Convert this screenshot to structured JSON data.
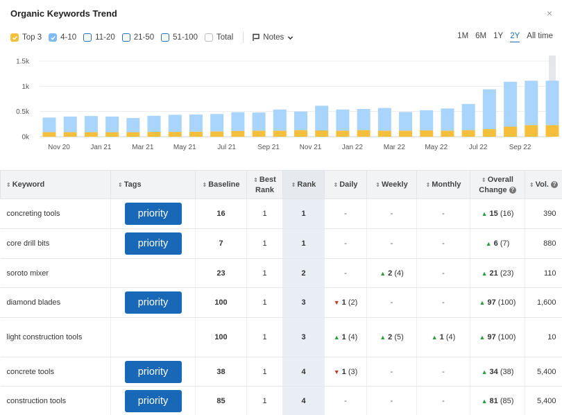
{
  "header": {
    "title": "Organic Keywords Trend",
    "close_glyph": "×"
  },
  "filters": [
    {
      "label": "Top 3",
      "checked": true,
      "color": "#f5bf3b"
    },
    {
      "label": "4-10",
      "checked": true,
      "color": "#7dbbf2"
    },
    {
      "label": "11-20",
      "checked": false,
      "color": "#1f6fc0"
    },
    {
      "label": "21-50",
      "checked": false,
      "color": "#1f6fc0"
    },
    {
      "label": "51-100",
      "checked": false,
      "color": "#1f6fc0"
    },
    {
      "label": "Total",
      "checked": false,
      "color": "#bbbbbb"
    }
  ],
  "notes": {
    "label": "Notes",
    "icon": "flag-icon"
  },
  "ranges": [
    {
      "label": "1M",
      "active": false
    },
    {
      "label": "6M",
      "active": false
    },
    {
      "label": "1Y",
      "active": false
    },
    {
      "label": "2Y",
      "active": true
    },
    {
      "label": "All time",
      "active": false
    }
  ],
  "chart_data": {
    "type": "bar",
    "stacked": true,
    "y_ticks": [
      "1.5k",
      "1k",
      "0.5k",
      "0k"
    ],
    "x_ticks": [
      "Nov 20",
      "Jan 21",
      "Mar 21",
      "May 21",
      "Jul 21",
      "Sep 21",
      "Nov 21",
      "Jan 22",
      "Mar 22",
      "May 22",
      "Jul 22",
      "Sep 22"
    ],
    "ylim": [
      0,
      1500
    ],
    "series": [
      {
        "name": "Top 3",
        "color": "#f5bf3b",
        "values": [
          90,
          90,
          90,
          90,
          90,
          95,
          95,
          100,
          105,
          115,
          120,
          120,
          130,
          125,
          120,
          130,
          120,
          120,
          125,
          120,
          130,
          150,
          200,
          230,
          230
        ]
      },
      {
        "name": "4-10",
        "color": "#a9d4fb",
        "values": [
          290,
          310,
          320,
          310,
          280,
          320,
          340,
          340,
          345,
          370,
          360,
          420,
          370,
          490,
          420,
          420,
          450,
          370,
          400,
          440,
          520,
          790,
          890,
          880,
          880
        ]
      }
    ]
  },
  "table": {
    "columns": [
      {
        "label": "Keyword"
      },
      {
        "label": "Tags"
      },
      {
        "label": "Baseline"
      },
      {
        "label": "Best Rank"
      },
      {
        "label": "Rank"
      },
      {
        "label": "Daily"
      },
      {
        "label": "Weekly"
      },
      {
        "label": "Monthly"
      },
      {
        "label": "Overall Change"
      },
      {
        "label": "Vol."
      }
    ],
    "rows": [
      {
        "keyword": "concreting tools",
        "tag": "priority",
        "baseline": "16",
        "best": "1",
        "rank": "1",
        "daily": "-",
        "weekly": "-",
        "monthly": "-",
        "overall": "15",
        "overall_sub": "(16)",
        "vol": "390"
      },
      {
        "keyword": "core drill bits",
        "tag": "priority",
        "baseline": "7",
        "best": "1",
        "rank": "1",
        "daily": "-",
        "weekly": "-",
        "monthly": "-",
        "overall": "6",
        "overall_sub": "(7)",
        "vol": "880"
      },
      {
        "keyword": "soroto mixer",
        "tag": "",
        "baseline": "23",
        "best": "1",
        "rank": "2",
        "daily": "-",
        "weekly": "2",
        "weekly_sub": "(4)",
        "monthly": "-",
        "overall": "21",
        "overall_sub": "(23)",
        "vol": "110"
      },
      {
        "keyword": "diamond blades",
        "tag": "priority",
        "baseline": "100",
        "best": "1",
        "rank": "3",
        "daily": "1",
        "daily_sub": "(2)",
        "daily_dir": "down",
        "weekly": "-",
        "monthly": "-",
        "overall": "97",
        "overall_sub": "(100)",
        "vol": "1,600"
      },
      {
        "keyword": "light construction tools",
        "tag": "",
        "baseline": "100",
        "best": "1",
        "rank": "3",
        "daily": "1",
        "daily_sub": "(4)",
        "daily_dir": "up",
        "weekly": "2",
        "weekly_sub": "(5)",
        "monthly": "1",
        "monthly_sub": "(4)",
        "overall": "97",
        "overall_sub": "(100)",
        "vol": "10"
      },
      {
        "keyword": "concrete tools",
        "tag": "priority",
        "baseline": "38",
        "best": "1",
        "rank": "4",
        "daily": "1",
        "daily_sub": "(3)",
        "daily_dir": "down",
        "weekly": "-",
        "monthly": "-",
        "overall": "34",
        "overall_sub": "(38)",
        "vol": "5,400"
      },
      {
        "keyword": "construction tools",
        "tag": "priority",
        "baseline": "85",
        "best": "1",
        "rank": "4",
        "daily": "-",
        "weekly": "-",
        "monthly": "-",
        "overall": "81",
        "overall_sub": "(85)",
        "vol": "5,400"
      }
    ]
  }
}
